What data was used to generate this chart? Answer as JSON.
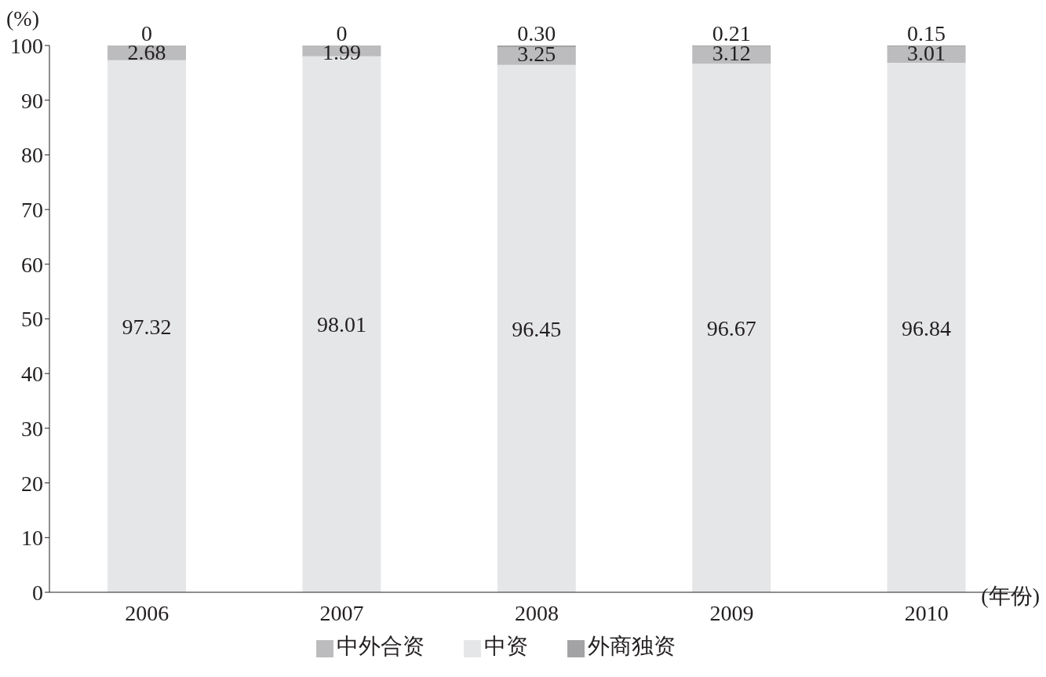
{
  "chart_data": {
    "type": "bar",
    "stacked": true,
    "ylabel": "(%)",
    "xlabel": "(年份)",
    "categories": [
      "2006",
      "2007",
      "2008",
      "2009",
      "2010"
    ],
    "series": [
      {
        "name": "中资",
        "color": "#e5e6e8",
        "values": [
          97.32,
          98.01,
          96.45,
          96.67,
          96.84
        ],
        "value_labels": [
          "97.32",
          "98.01",
          "96.45",
          "96.67",
          "96.84"
        ]
      },
      {
        "name": "中外合资",
        "color": "#bcbcbe",
        "values": [
          2.68,
          1.99,
          3.25,
          3.12,
          3.01
        ],
        "value_labels": [
          "2.68",
          "1.99",
          "3.25",
          "3.12",
          "3.01"
        ]
      },
      {
        "name": "外商独资",
        "color": "#a3a3a5",
        "values": [
          0,
          0,
          0.3,
          0.21,
          0.15
        ],
        "value_labels": [
          "0",
          "0",
          "0.30",
          "0.21",
          "0.15"
        ]
      }
    ],
    "ylim": [
      0,
      100
    ],
    "yticks": [
      0,
      10,
      20,
      30,
      40,
      50,
      60,
      70,
      80,
      90,
      100
    ],
    "grid": false,
    "legend": "bottom"
  }
}
